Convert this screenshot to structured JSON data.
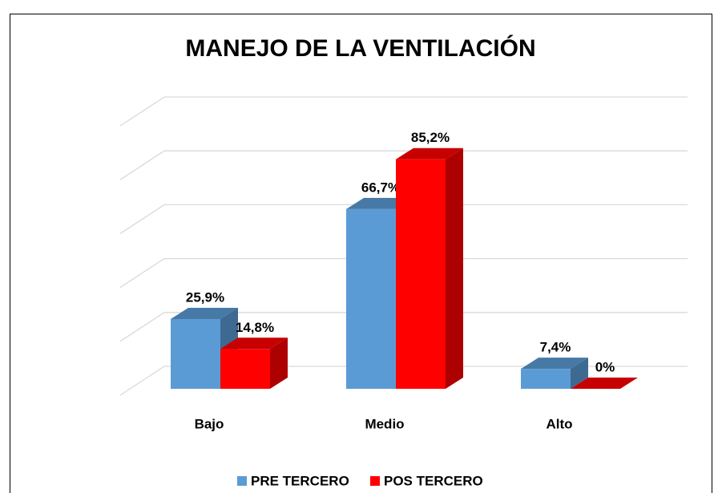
{
  "chart_data": {
    "type": "bar3d",
    "title": "MANEJO DE LA VENTILACIÓN",
    "categories": [
      "Bajo",
      "Medio",
      "Alto"
    ],
    "series": [
      {
        "name": "PRE TERCERO",
        "color": "#5b9bd5",
        "values": [
          25.9,
          66.7,
          7.4
        ],
        "value_labels": [
          "25,9%",
          "66,7%",
          "7,4%"
        ]
      },
      {
        "name": "POS TERCERO",
        "color": "#ff0000",
        "values": [
          14.8,
          85.2,
          0
        ],
        "value_labels": [
          "14,8%",
          "85,2%",
          "0%"
        ]
      }
    ],
    "ylim": [
      0,
      100
    ],
    "yticks": [
      0,
      20,
      40,
      60,
      80,
      100
    ],
    "grid": true,
    "legend": "bottom"
  }
}
